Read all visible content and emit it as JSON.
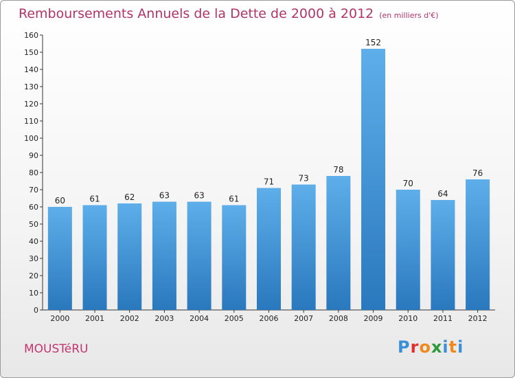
{
  "header": {
    "title": "Remboursements Annuels de la Dette de 2000 à 2012",
    "subtitle": "(en milliers d'€)"
  },
  "footer": {
    "town": "MOUSTéRU",
    "brand_letters": [
      "P",
      "r",
      "o",
      "x",
      "i",
      "t",
      "i"
    ],
    "brand_colors": [
      "#3b8fd6",
      "#e03030",
      "#f08a1c",
      "#2a9a3a",
      "#3b8fd6",
      "#f08a1c",
      "#3b8fd6"
    ]
  },
  "colors": {
    "bar_top": "#5eaeea",
    "bar_bottom": "#2a78bd",
    "axis": "#333333",
    "grid": "#dddddd"
  },
  "chart_data": {
    "type": "bar",
    "title": "Remboursements Annuels de la Dette de 2000 à 2012",
    "subtitle": "(en milliers d'€)",
    "xlabel": "",
    "ylabel": "",
    "categories": [
      "2000",
      "2001",
      "2002",
      "2003",
      "2004",
      "2005",
      "2006",
      "2007",
      "2008",
      "2009",
      "2010",
      "2011",
      "2012"
    ],
    "values": [
      60,
      61,
      62,
      63,
      63,
      61,
      71,
      73,
      78,
      152,
      70,
      64,
      76
    ],
    "ylim": [
      0,
      160
    ],
    "yticks": [
      0,
      10,
      20,
      30,
      40,
      50,
      60,
      70,
      80,
      90,
      100,
      110,
      120,
      130,
      140,
      150,
      160
    ],
    "grid": false,
    "legend": "none"
  }
}
